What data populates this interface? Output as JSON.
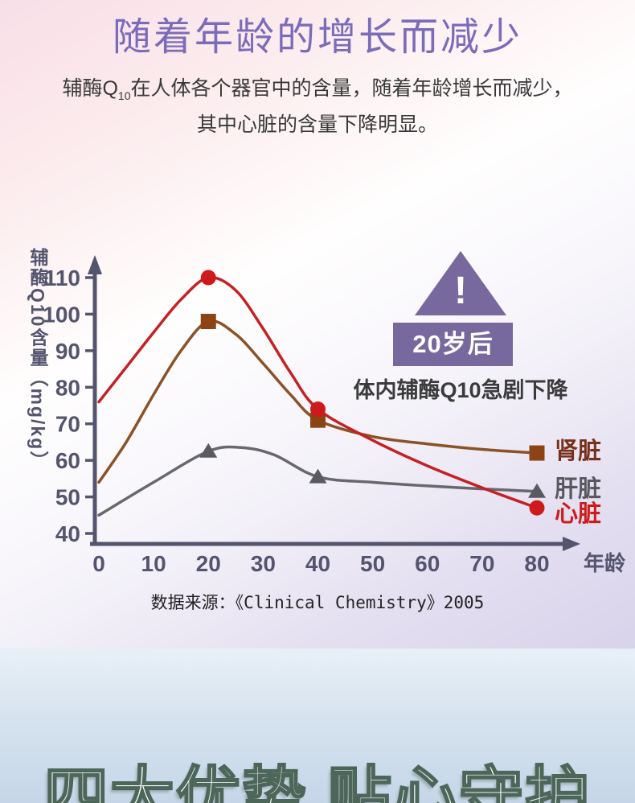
{
  "page": {
    "title": "随着年龄的增长而减少",
    "subtitle": {
      "line1_prefix": "辅酶Q",
      "line1_sub": "10",
      "line1_rest": "在人体各个器官中的含量，随着年龄增长而减少，",
      "line2": "其中心脏的含量下降明显。"
    },
    "source": "数据来源：《Clinical Chemistry》2005",
    "bottom_heading": "四大优势 贴心守护"
  },
  "annotation": {
    "warning_mark": "!",
    "badge": "20岁后",
    "caption": "体内辅酶Q10急剧下降"
  },
  "colors": {
    "title": "#7b6cba",
    "axis": "#54546e",
    "accent_purple": "#77689d",
    "heading_outline": "#4c665a"
  },
  "chart_data": {
    "type": "line",
    "title": "",
    "xlabel": "年龄",
    "ylabel": "辅酶Q10含量（mg/kg）",
    "xlim": [
      0,
      80
    ],
    "ylim": [
      40,
      110
    ],
    "x_ticks": [
      0,
      10,
      20,
      30,
      40,
      50,
      60,
      70,
      80
    ],
    "y_ticks": [
      40,
      50,
      60,
      70,
      80,
      90,
      100,
      110
    ],
    "grid": false,
    "legend_position": "right-end-of-line",
    "axis_color": "#54546e",
    "series": [
      {
        "id": "liver",
        "name": "肝脏",
        "line_color": "#67676d",
        "marker": "triangle",
        "marker_color": "#5a5a61",
        "label_color": "#58585e",
        "label_dy": -4,
        "points": [
          [
            0,
            45
          ],
          [
            10,
            54
          ],
          [
            20,
            62.5
          ],
          [
            26,
            63.5
          ],
          [
            32,
            61.5
          ],
          [
            40,
            55.5
          ],
          [
            50,
            54
          ],
          [
            60,
            53
          ],
          [
            70,
            52.2
          ],
          [
            80,
            51.5
          ]
        ],
        "marker_ages": [
          20,
          40,
          80
        ],
        "marker_values": {
          "20": 62.5,
          "40": 55.5,
          "80": 51.5
        }
      },
      {
        "id": "kidney",
        "name": "肾脏",
        "line_color": "#8a5226",
        "marker": "square",
        "marker_color": "#8c4414",
        "label_color": "#79301a",
        "label_dy": -3,
        "points": [
          [
            0,
            54
          ],
          [
            5,
            65
          ],
          [
            10,
            78
          ],
          [
            15,
            90
          ],
          [
            20,
            98
          ],
          [
            25,
            94.5
          ],
          [
            30,
            86.5
          ],
          [
            35,
            78
          ],
          [
            40,
            71
          ],
          [
            50,
            66.5
          ],
          [
            60,
            64.5
          ],
          [
            70,
            63
          ],
          [
            80,
            62
          ]
        ],
        "marker_ages": [
          20,
          40,
          80
        ],
        "marker_values": {
          "20": 98,
          "40": 71,
          "80": 62
        }
      },
      {
        "id": "heart",
        "name": "心脏",
        "line_color": "#c52125",
        "marker": "circle",
        "marker_color": "#cd1a1c",
        "label_color": "#cc1c1c",
        "label_dy": 7,
        "points": [
          [
            0,
            76
          ],
          [
            5,
            85.5
          ],
          [
            10,
            95
          ],
          [
            15,
            104
          ],
          [
            20,
            110
          ],
          [
            25,
            106.5
          ],
          [
            30,
            96
          ],
          [
            35,
            84
          ],
          [
            40,
            74
          ],
          [
            50,
            65.5
          ],
          [
            60,
            58.5
          ],
          [
            70,
            52.5
          ],
          [
            80,
            47
          ]
        ],
        "marker_ages": [
          20,
          40,
          80
        ],
        "marker_values": {
          "20": 110,
          "40": 74,
          "80": 47
        }
      }
    ]
  }
}
